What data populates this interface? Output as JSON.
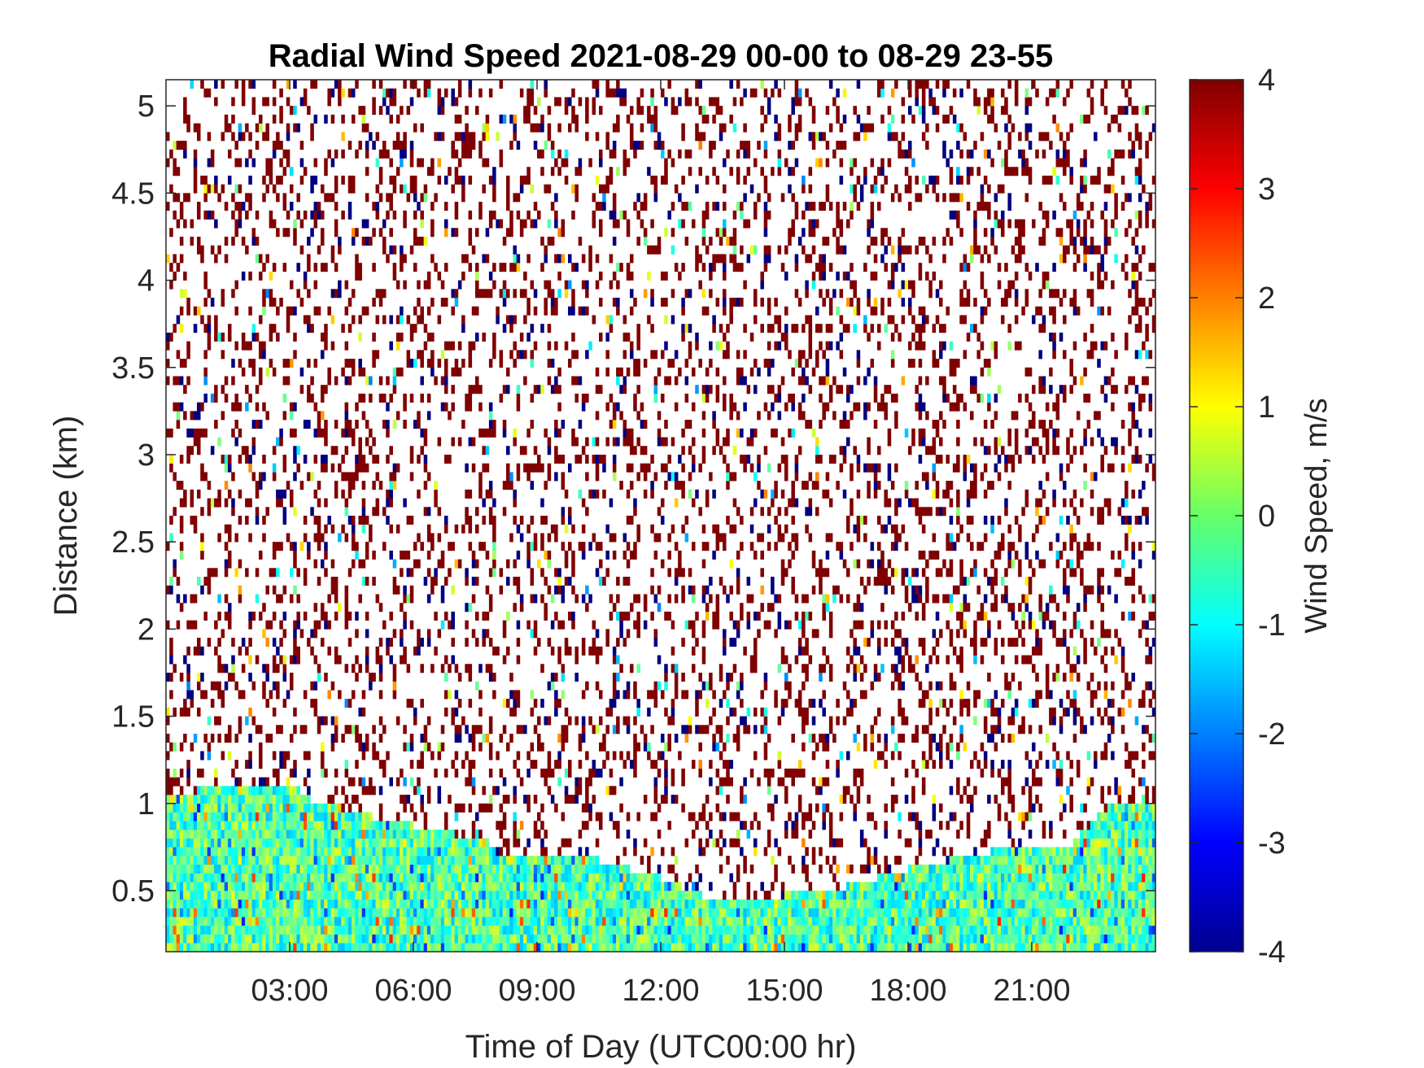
{
  "chart_data": {
    "type": "heatmap",
    "title": "Radial Wind Speed 2021-08-29 00-00 to 08-29 23-55",
    "xlabel": "Time of Day (UTC00:00 hr)",
    "ylabel": "Distance (km)",
    "colorbar_label": "Wind Speed, m/s",
    "x_ticks": [
      "03:00",
      "06:00",
      "09:00",
      "12:00",
      "15:00",
      "18:00",
      "21:00"
    ],
    "x_tick_values": [
      3,
      6,
      9,
      12,
      15,
      18,
      21
    ],
    "xlim": [
      0,
      24
    ],
    "y_ticks": [
      "0.5",
      "1",
      "1.5",
      "2",
      "2.5",
      "3",
      "3.5",
      "4",
      "4.5",
      "5"
    ],
    "y_tick_values": [
      0.5,
      1,
      1.5,
      2,
      2.5,
      3,
      3.5,
      4,
      4.5,
      5
    ],
    "ylim": [
      0.15,
      5.15
    ],
    "colorbar_ticks": [
      "-4",
      "-3",
      "-2",
      "-1",
      "0",
      "1",
      "2",
      "3",
      "4"
    ],
    "colorbar_tick_values": [
      -4,
      -3,
      -2,
      -1,
      0,
      1,
      2,
      3,
      4
    ],
    "clim": [
      -4,
      4
    ],
    "colormap": "jet",
    "boundary_layer_top_km": [
      [
        0,
        1.05
      ],
      [
        1.5,
        1.15
      ],
      [
        3.0,
        1.15
      ],
      [
        3.5,
        1.05
      ],
      [
        5.0,
        0.95
      ],
      [
        6.0,
        0.9
      ],
      [
        7.0,
        0.85
      ],
      [
        7.8,
        0.8
      ],
      [
        8.0,
        0.75
      ],
      [
        10.5,
        0.7
      ],
      [
        12.0,
        0.6
      ],
      [
        13.0,
        0.5
      ],
      [
        14.0,
        0.45
      ],
      [
        15.0,
        0.5
      ],
      [
        16.5,
        0.55
      ],
      [
        18.0,
        0.65
      ],
      [
        19.0,
        0.7
      ],
      [
        20.0,
        0.75
      ],
      [
        22.0,
        0.8
      ],
      [
        23.0,
        1.05
      ],
      [
        24.0,
        1.05
      ]
    ],
    "noise_above_boundary": true
  }
}
